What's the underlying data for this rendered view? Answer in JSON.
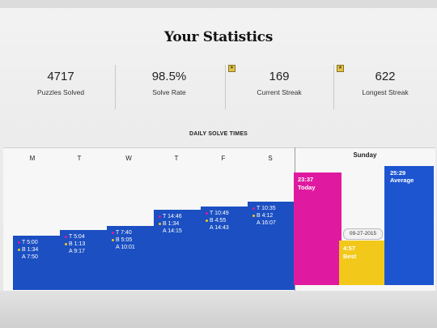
{
  "page": {
    "title": "Your Statistics"
  },
  "stats": [
    {
      "value": "4717",
      "label": "Puzzles Solved"
    },
    {
      "value": "98.5%",
      "label": "Solve Rate"
    },
    {
      "value": "169",
      "label": "Current Streak"
    },
    {
      "value": "622",
      "label": "Longest Streak"
    }
  ],
  "badges": {
    "star": "★"
  },
  "daily": {
    "title": "DAILY SOLVE TIMES",
    "days": [
      "M",
      "T",
      "W",
      "T",
      "F",
      "S"
    ],
    "weekday_stats": [
      {
        "t": "T 5:00",
        "b": "B 1:34",
        "a": "A 7:50"
      },
      {
        "t": "T 5:04",
        "b": "B 1:13",
        "a": "A 9:17"
      },
      {
        "t": "T 7:40",
        "b": "B 5:05",
        "a": "A 10:01"
      },
      {
        "t": "T 14:46",
        "b": "B 1:34",
        "a": "A 14:15"
      },
      {
        "t": "T 10:49",
        "b": "B 4:55",
        "a": "A 14:43"
      },
      {
        "t": "T 10:35",
        "b": "B 4:12",
        "a": "A 16:07"
      }
    ],
    "sunday": {
      "label": "Sunday",
      "today_time": "23:37",
      "today_label": "Today",
      "best_time": "4:57",
      "best_label": "Best",
      "best_date": "09-27-2015",
      "average_time": "25:29",
      "average_label": "Average"
    }
  },
  "colors": {
    "bar_blue": "#1b4fc2",
    "today": "#e01aa0",
    "best": "#f2c81a",
    "average": "#1d55d0",
    "dot_today": "#e01aa0",
    "dot_best": "#f2c81a"
  }
}
